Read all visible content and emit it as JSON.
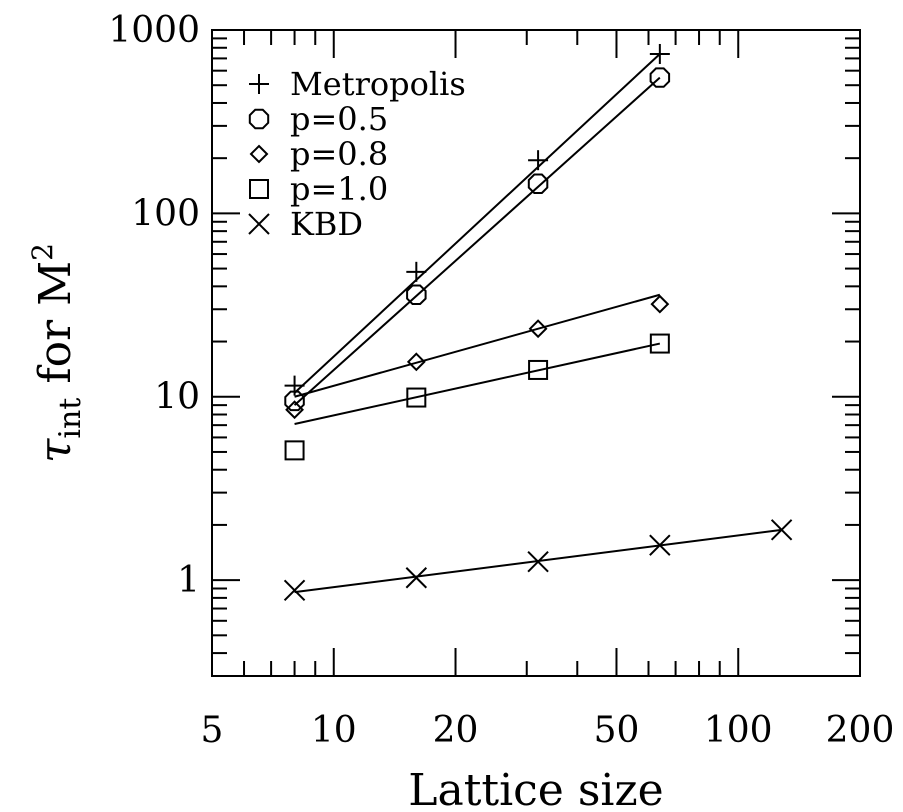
{
  "chart_data": {
    "type": "scatter",
    "title": "",
    "xlabel": "Lattice size",
    "ylabel": "τ_int for M²",
    "ylabel_parts": {
      "symbol": "τ",
      "subscript": "int",
      "middle": " for ",
      "quantity": "M",
      "superscript": "2"
    },
    "xscale": "log",
    "yscale": "log",
    "xlim": [
      5,
      200
    ],
    "ylim": [
      0.3,
      1000
    ],
    "xticks": [
      5,
      10,
      20,
      50,
      100,
      200
    ],
    "xtick_labels": [
      "5",
      "10",
      "20",
      "50",
      "100",
      "200"
    ],
    "yticks": [
      1,
      10,
      100,
      1000
    ],
    "ytick_labels": [
      "1",
      "10",
      "100",
      "1000"
    ],
    "grid": false,
    "legend_position": "top-left",
    "series": [
      {
        "name": "Metropolis",
        "marker": "plus",
        "x": [
          8,
          16,
          32,
          64
        ],
        "y": [
          11.5,
          48,
          195,
          740
        ],
        "fit": {
          "x": [
            8,
            64
          ],
          "y": [
            10.5,
            740
          ]
        }
      },
      {
        "name": "p=0.5",
        "marker": "octagon",
        "x": [
          8,
          16,
          32,
          64
        ],
        "y": [
          9.5,
          36,
          145,
          550
        ],
        "fit": {
          "x": [
            8,
            64
          ],
          "y": [
            9.0,
            550
          ]
        }
      },
      {
        "name": "p=0.8",
        "marker": "diamond",
        "x": [
          8,
          16,
          32,
          64
        ],
        "y": [
          8.5,
          15.5,
          23.5,
          32
        ],
        "fit": {
          "x": [
            8,
            64
          ],
          "y": [
            10.0,
            36
          ]
        }
      },
      {
        "name": "p=1.0",
        "marker": "square",
        "x": [
          8,
          16,
          32,
          64
        ],
        "y": [
          5.1,
          9.9,
          14.0,
          19.5
        ],
        "fit": {
          "x": [
            8,
            64
          ],
          "y": [
            7.1,
            19.5
          ]
        }
      },
      {
        "name": "KBD",
        "marker": "cross",
        "x": [
          8,
          16,
          32,
          64,
          128
        ],
        "y": [
          0.88,
          1.03,
          1.26,
          1.55,
          1.88
        ],
        "fit": {
          "x": [
            8,
            128
          ],
          "y": [
            0.86,
            1.88
          ]
        }
      }
    ]
  }
}
